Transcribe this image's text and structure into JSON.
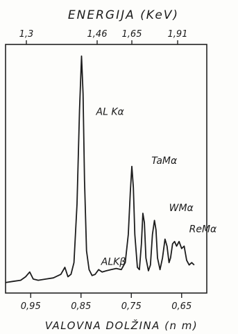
{
  "chart_data": {
    "type": "line",
    "top_axis": {
      "title": "ENERGIJA (KeV)",
      "ticks": [
        {
          "value": 1.3,
          "label": "1,3"
        },
        {
          "value": 1.46,
          "label": "1,46"
        },
        {
          "value": 1.65,
          "label": "1,65"
        },
        {
          "value": 1.91,
          "label": "1,91"
        }
      ]
    },
    "xlabel": "VALOVNA DOLŽINA (n m)",
    "xlim": [
      1.0,
      0.6
    ],
    "ylim": [
      0,
      100
    ],
    "x_ticks": [
      {
        "value": 0.95,
        "label": "0,95"
      },
      {
        "value": 0.85,
        "label": "0,85"
      },
      {
        "value": 0.75,
        "label": "0,75"
      },
      {
        "value": 0.65,
        "label": "0,65"
      }
    ],
    "peak_labels": [
      {
        "text": "AL Kα",
        "x": 0.82,
        "y": 73
      },
      {
        "text": "ALKβ",
        "x": 0.81,
        "y": 9
      },
      {
        "text": "TaMα",
        "x": 0.71,
        "y": 52
      },
      {
        "text": "WMα",
        "x": 0.675,
        "y": 32
      },
      {
        "text": "ReMα",
        "x": 0.635,
        "y": 23
      }
    ],
    "series": [
      {
        "x": [
          1.0,
          0.985,
          0.97,
          0.96,
          0.952,
          0.945,
          0.935,
          0.92,
          0.905,
          0.89,
          0.882,
          0.876,
          0.87,
          0.864,
          0.858,
          0.853,
          0.849,
          0.846,
          0.843,
          0.839,
          0.834,
          0.828,
          0.822,
          0.815,
          0.808,
          0.8,
          0.79,
          0.78,
          0.77,
          0.762,
          0.756,
          0.752,
          0.749,
          0.746,
          0.743,
          0.738,
          0.734,
          0.73,
          0.727,
          0.724,
          0.721,
          0.716,
          0.712,
          0.708,
          0.704,
          0.701,
          0.698,
          0.693,
          0.688,
          0.683,
          0.679,
          0.675,
          0.672,
          0.668,
          0.664,
          0.66,
          0.655,
          0.65,
          0.645,
          0.64,
          0.635,
          0.63,
          0.625
        ],
        "values": [
          1.5,
          2,
          2.5,
          4,
          6,
          3,
          2.5,
          3,
          3.5,
          5,
          8,
          4,
          5,
          10,
          35,
          75,
          98,
          82,
          45,
          15,
          7,
          4.5,
          5,
          7,
          6,
          6.5,
          7,
          7.5,
          7,
          10,
          22,
          40,
          51,
          42,
          22,
          8,
          7,
          18,
          31,
          27,
          12,
          6.5,
          9,
          22,
          28,
          24,
          12,
          7,
          12,
          20,
          17,
          10,
          12,
          18,
          19,
          17,
          19,
          16,
          17,
          11,
          9,
          10,
          9
        ]
      }
    ]
  }
}
